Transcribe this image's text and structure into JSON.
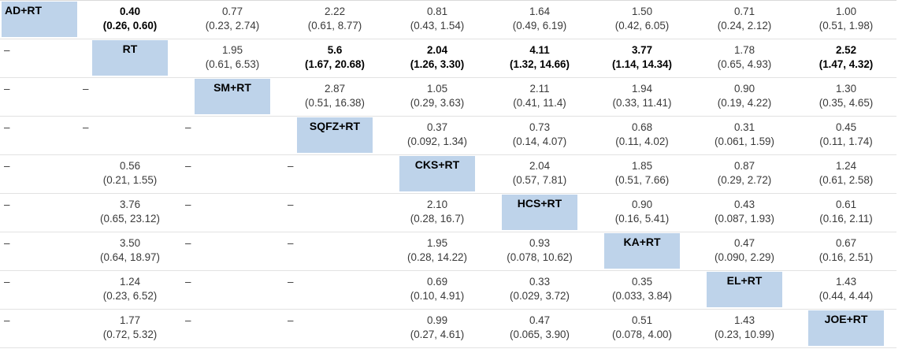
{
  "table": {
    "accent_color": "#bed3ea",
    "rows": [
      [
        {
          "t": "AD+RT"
        },
        {
          "e": "0.40",
          "c": "(0.26, 0.60)",
          "b": true
        },
        {
          "e": "0.77",
          "c": "(0.23, 2.74)"
        },
        {
          "e": "2.22",
          "c": "(0.61, 8.77)"
        },
        {
          "e": "0.81",
          "c": "(0.43, 1.54)"
        },
        {
          "e": "1.64",
          "c": "(0.49, 6.19)"
        },
        {
          "e": "1.50",
          "c": "(0.42, 6.05)"
        },
        {
          "e": "0.71",
          "c": "(0.24, 2.12)"
        },
        {
          "e": "1.00",
          "c": "(0.51, 1.98)"
        }
      ],
      [
        {
          "d": "–"
        },
        {
          "t": "RT"
        },
        {
          "e": "1.95",
          "c": "(0.61, 6.53)"
        },
        {
          "e": "5.6",
          "c": "(1.67, 20.68)",
          "b": true
        },
        {
          "e": "2.04",
          "c": "(1.26, 3.30)",
          "b": true
        },
        {
          "e": "4.11",
          "c": "(1.32, 14.66)",
          "b": true
        },
        {
          "e": "3.77",
          "c": "(1.14, 14.34)",
          "b": true
        },
        {
          "e": "1.78",
          "c": "(0.65, 4.93)"
        },
        {
          "e": "2.52",
          "c": "(1.47, 4.32)",
          "b": true
        }
      ],
      [
        {
          "d": "–"
        },
        {
          "d": "–"
        },
        {
          "t": "SM+RT"
        },
        {
          "e": "2.87",
          "c": "(0.51, 16.38)"
        },
        {
          "e": "1.05",
          "c": "(0.29, 3.63)"
        },
        {
          "e": "2.11",
          "c": "(0.41, 11.4)"
        },
        {
          "e": "1.94",
          "c": "(0.33, 11.41)"
        },
        {
          "e": "0.90",
          "c": "(0.19, 4.22)"
        },
        {
          "e": "1.30",
          "c": "(0.35, 4.65)"
        }
      ],
      [
        {
          "d": "–"
        },
        {
          "d": "–"
        },
        {
          "d": "–"
        },
        {
          "t": "SQFZ+RT"
        },
        {
          "e": "0.37",
          "c": "(0.092, 1.34)"
        },
        {
          "e": "0.73",
          "c": "(0.14, 4.07)"
        },
        {
          "e": "0.68",
          "c": "(0.11, 4.02)"
        },
        {
          "e": "0.31",
          "c": "(0.061, 1.59)"
        },
        {
          "e": "0.45",
          "c": "(0.11, 1.74)"
        }
      ],
      [
        {
          "d": "–"
        },
        {
          "e": "0.56",
          "c": "(0.21, 1.55)"
        },
        {
          "d": "–"
        },
        {
          "d": "–"
        },
        {
          "t": "CKS+RT"
        },
        {
          "e": "2.04",
          "c": "(0.57, 7.81)"
        },
        {
          "e": "1.85",
          "c": "(0.51, 7.66)"
        },
        {
          "e": "0.87",
          "c": "(0.29, 2.72)"
        },
        {
          "e": "1.24",
          "c": "(0.61, 2.58)"
        }
      ],
      [
        {
          "d": "–"
        },
        {
          "e": "3.76",
          "c": "(0.65, 23.12)"
        },
        {
          "d": "–"
        },
        {
          "d": "–"
        },
        {
          "e": "2.10",
          "c": "(0.28, 16.7)"
        },
        {
          "t": "HCS+RT"
        },
        {
          "e": "0.90",
          "c": "(0.16, 5.41)"
        },
        {
          "e": "0.43",
          "c": "(0.087, 1.93)"
        },
        {
          "e": "0.61",
          "c": "(0.16, 2.11)"
        }
      ],
      [
        {
          "d": "–"
        },
        {
          "e": "3.50",
          "c": "(0.64, 18.97)"
        },
        {
          "d": "–"
        },
        {
          "d": "–"
        },
        {
          "e": "1.95",
          "c": "(0.28, 14.22)"
        },
        {
          "e": "0.93",
          "c": "(0.078, 10.62)"
        },
        {
          "t": "KA+RT"
        },
        {
          "e": "0.47",
          "c": "(0.090, 2.29)"
        },
        {
          "e": "0.67",
          "c": "(0.16, 2.51)"
        }
      ],
      [
        {
          "d": "–"
        },
        {
          "e": "1.24",
          "c": "(0.23, 6.52)"
        },
        {
          "d": "–"
        },
        {
          "d": "–"
        },
        {
          "e": "0.69",
          "c": "(0.10, 4.91)"
        },
        {
          "e": "0.33",
          "c": "(0.029, 3.72)"
        },
        {
          "e": "0.35",
          "c": "(0.033, 3.84)"
        },
        {
          "t": "EL+RT"
        },
        {
          "e": "1.43",
          "c": "(0.44, 4.44)"
        }
      ],
      [
        {
          "d": "–"
        },
        {
          "e": "1.77",
          "c": "(0.72, 5.32)"
        },
        {
          "d": "–"
        },
        {
          "d": "–"
        },
        {
          "e": "0.99",
          "c": "(0.27, 4.61)"
        },
        {
          "e": "0.47",
          "c": "(0.065, 3.90)"
        },
        {
          "e": "0.51",
          "c": "(0.078, 4.00)"
        },
        {
          "e": "1.43",
          "c": "(0.23, 10.99)"
        },
        {
          "t": "JOE+RT"
        }
      ]
    ]
  }
}
